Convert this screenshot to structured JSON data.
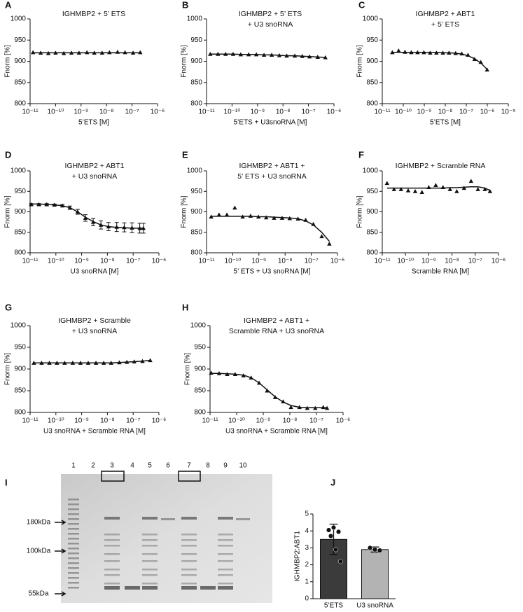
{
  "chart_data": [
    {
      "type": "line",
      "panel": "A",
      "title": [
        "IGHMBP2 + 5’ ETS"
      ],
      "xlabel": "5’ETS [M]",
      "ylabel": "Fnorm [%]",
      "xscale": "log",
      "xlim": [
        1e-11,
        1e-06
      ],
      "xticks": [
        {
          "value": 1e-11,
          "label": "10⁻¹¹"
        },
        {
          "value": 1e-10,
          "label": "10⁻¹⁰"
        },
        {
          "value": 1e-09,
          "label": "10⁻⁹"
        },
        {
          "value": 1e-08,
          "label": "10⁻⁸"
        },
        {
          "value": 1e-07,
          "label": "10⁻⁷"
        },
        {
          "value": 1e-06,
          "label": "10⁻⁶"
        }
      ],
      "ylim": [
        800,
        1000
      ],
      "yticks": [
        800,
        850,
        900,
        950,
        1000
      ],
      "color": "#111111",
      "x": [
        1.3e-11,
        2.6e-11,
        5.2e-11,
        1e-10,
        2.1e-10,
        4.2e-10,
        8.3e-10,
        1.7e-09,
        3.3e-09,
        6.7e-09,
        1.3e-08,
        2.7e-08,
        5.3e-08,
        1.1e-07,
        2.1e-07
      ],
      "values": [
        921,
        920,
        919,
        920,
        919,
        920,
        920,
        921,
        920,
        920,
        921,
        922,
        921,
        920,
        921
      ],
      "fit": [
        920,
        920,
        920,
        920,
        920,
        920,
        920,
        920,
        920,
        920,
        920,
        920,
        920,
        920,
        920
      ]
    },
    {
      "type": "line",
      "panel": "B",
      "title": [
        "IGHMBP2 + 5’ ETS",
        "+ U3 snoRNA"
      ],
      "xlabel": "5’ETS + U3snoRNA [M]",
      "ylabel": "Fnorm [%]",
      "xscale": "log",
      "xlim": [
        1e-11,
        1e-06
      ],
      "xticks": [
        {
          "value": 1e-11,
          "label": "10⁻¹¹"
        },
        {
          "value": 1e-10,
          "label": "10⁻¹⁰"
        },
        {
          "value": 1e-09,
          "label": "10⁻⁹"
        },
        {
          "value": 1e-08,
          "label": "10⁻⁸"
        },
        {
          "value": 1e-07,
          "label": "10⁻⁷"
        },
        {
          "value": 1e-06,
          "label": "10⁻⁶"
        }
      ],
      "ylim": [
        800,
        1000
      ],
      "yticks": [
        800,
        850,
        900,
        950,
        1000
      ],
      "color": "#111111",
      "x": [
        1.4e-11,
        2.8e-11,
        5.6e-11,
        1.1e-10,
        2.2e-10,
        4.5e-10,
        9e-10,
        1.8e-09,
        3.6e-09,
        7.2e-09,
        1.4e-08,
        2.9e-08,
        5.7e-08,
        1.1e-07,
        2.3e-07,
        4.6e-07
      ],
      "values": [
        917,
        917,
        917,
        917,
        916,
        916,
        916,
        915,
        915,
        914,
        913,
        913,
        912,
        911,
        910,
        909
      ],
      "fit": [
        917,
        917,
        917,
        917,
        916,
        916,
        916,
        915,
        915,
        914,
        913,
        913,
        912,
        911,
        910,
        909
      ]
    },
    {
      "type": "line",
      "panel": "C",
      "title": [
        "IGHMBP2 + ABT1",
        "+ 5’ ETS"
      ],
      "xlabel": "5’ETS [M]",
      "ylabel": "Fnorm [%]",
      "xscale": "log",
      "xlim": [
        1e-11,
        1e-05
      ],
      "xticks": [
        {
          "value": 1e-11,
          "label": "10⁻¹¹"
        },
        {
          "value": 1e-10,
          "label": "10⁻¹⁰"
        },
        {
          "value": 1e-09,
          "label": "10⁻⁹"
        },
        {
          "value": 1e-08,
          "label": "10⁻⁸"
        },
        {
          "value": 1e-07,
          "label": "10⁻⁷"
        },
        {
          "value": 1e-06,
          "label": "10⁻⁶"
        },
        {
          "value": 1e-05,
          "label": "10⁻⁵"
        }
      ],
      "ylim": [
        800,
        1000
      ],
      "yticks": [
        800,
        850,
        900,
        950,
        1000
      ],
      "color": "#111111",
      "x": [
        3e-11,
        6e-11,
        1.2e-10,
        2.4e-10,
        4.8e-10,
        9.6e-10,
        1.9e-09,
        3.8e-09,
        7.7e-09,
        1.5e-08,
        3.1e-08,
        6.1e-08,
        1.2e-07,
        2.5e-07,
        4.9e-07,
        9.8e-07
      ],
      "values": [
        921,
        925,
        922,
        921,
        921,
        921,
        920,
        920,
        920,
        920,
        919,
        918,
        915,
        905,
        898,
        880
      ],
      "fit": [
        921,
        921,
        921,
        921,
        921,
        921,
        921,
        921,
        920,
        920,
        919,
        917,
        913,
        906,
        896,
        881
      ]
    },
    {
      "type": "line",
      "panel": "D",
      "title": [
        "IGHMBP2 + ABT1",
        "+ U3 snoRNA"
      ],
      "xlabel": "U3 snoRNA [M]",
      "ylabel": "Fnorm [%]",
      "xscale": "log",
      "xlim": [
        1e-11,
        1e-06
      ],
      "xticks": [
        {
          "value": 1e-11,
          "label": "10⁻¹¹"
        },
        {
          "value": 1e-10,
          "label": "10⁻¹⁰"
        },
        {
          "value": 1e-09,
          "label": "10⁻⁹"
        },
        {
          "value": 1e-08,
          "label": "10⁻⁸"
        },
        {
          "value": 1e-07,
          "label": "10⁻⁷"
        },
        {
          "value": 1e-06,
          "label": "10⁻⁶"
        }
      ],
      "ylim": [
        800,
        1000
      ],
      "yticks": [
        800,
        850,
        900,
        950,
        1000
      ],
      "color": "#111111",
      "x": [
        1.1e-11,
        2.2e-11,
        4.4e-11,
        8.8e-11,
        1.8e-10,
        3.5e-10,
        7e-10,
        1.4e-09,
        2.8e-09,
        5.6e-09,
        1.1e-08,
        2.3e-08,
        4.5e-08,
        9e-08,
        1.8e-07,
        2.5e-07
      ],
      "values": [
        918,
        918,
        918,
        917,
        915,
        910,
        900,
        885,
        875,
        868,
        864,
        863,
        862,
        861,
        860,
        860
      ],
      "errors": [
        2,
        2,
        2,
        2,
        3,
        4,
        6,
        8,
        9,
        10,
        10,
        11,
        11,
        12,
        12,
        12
      ],
      "fit": [
        919,
        919,
        918,
        917,
        915,
        910,
        900,
        887,
        876,
        868,
        864,
        862,
        861,
        860,
        860,
        860
      ]
    },
    {
      "type": "line",
      "panel": "E",
      "title": [
        "IGHMBP2 + ABT1 +",
        "5’ ETS + U3 snoRNA"
      ],
      "xlabel": "5’ ETS + U3 snoRNA [M]",
      "ylabel": "Fnorm [%]",
      "xscale": "log",
      "xlim": [
        1e-11,
        1e-06
      ],
      "xticks": [
        {
          "value": 1e-11,
          "label": "10⁻¹¹"
        },
        {
          "value": 1e-10,
          "label": "10⁻¹⁰"
        },
        {
          "value": 1e-09,
          "label": "10⁻⁹"
        },
        {
          "value": 1e-08,
          "label": "10⁻⁸"
        },
        {
          "value": 1e-07,
          "label": "10⁻⁷"
        },
        {
          "value": 1e-06,
          "label": "10⁻⁶"
        }
      ],
      "ylim": [
        800,
        1000
      ],
      "yticks": [
        800,
        850,
        900,
        950,
        1000
      ],
      "color": "#111111",
      "x": [
        1.5e-11,
        3e-11,
        6e-11,
        1.2e-10,
        2.4e-10,
        4.8e-10,
        9.6e-10,
        1.9e-09,
        3.8e-09,
        7.7e-09,
        1.5e-08,
        3.1e-08,
        6.1e-08,
        1.2e-07,
        2.5e-07,
        4.9e-07
      ],
      "values": [
        888,
        893,
        893,
        910,
        888,
        890,
        888,
        886,
        885,
        885,
        884,
        883,
        880,
        870,
        840,
        822
      ],
      "fit": [
        889,
        889,
        889,
        889,
        889,
        889,
        888,
        888,
        887,
        886,
        885,
        883,
        878,
        868,
        850,
        828
      ]
    },
    {
      "type": "line",
      "panel": "F",
      "title": [
        "IGHMBP2 + Scramble RNA"
      ],
      "xlabel": "Scramble RNA [M]",
      "ylabel": "Fnorm [%]",
      "xscale": "log",
      "xlim": [
        1e-11,
        1e-06
      ],
      "xticks": [
        {
          "value": 1e-11,
          "label": "10⁻¹¹"
        },
        {
          "value": 1e-10,
          "label": "10⁻¹⁰"
        },
        {
          "value": 1e-09,
          "label": "10⁻⁹"
        },
        {
          "value": 1e-08,
          "label": "10⁻⁸"
        },
        {
          "value": 1e-07,
          "label": "10⁻⁷"
        },
        {
          "value": 1e-06,
          "label": "10⁻⁶"
        }
      ],
      "ylim": [
        800,
        1000
      ],
      "yticks": [
        800,
        850,
        900,
        950,
        1000
      ],
      "color": "#111111",
      "x": [
        1.6e-11,
        3.2e-11,
        6.4e-11,
        1.3e-10,
        2.6e-10,
        5.1e-10,
        1e-09,
        2e-09,
        4.1e-09,
        8.2e-09,
        1.6e-08,
        3.3e-08,
        6.6e-08,
        1.3e-07,
        2.6e-07,
        4.3e-07
      ],
      "values": [
        970,
        955,
        955,
        952,
        950,
        948,
        960,
        965,
        960,
        955,
        950,
        958,
        975,
        955,
        955,
        950
      ],
      "fit": [
        958,
        958,
        958,
        958,
        958,
        958,
        958,
        958,
        958,
        959,
        959,
        960,
        961,
        961,
        958,
        952
      ]
    },
    {
      "type": "line",
      "panel": "G",
      "title": [
        "IGHMBP2 + Scramble",
        "+ U3 snoRNA"
      ],
      "xlabel": "U3 snoRNA + Scramble RNA [M]",
      "ylabel": "Fnorm [%]",
      "xscale": "log",
      "xlim": [
        1e-11,
        1e-06
      ],
      "xticks": [
        {
          "value": 1e-11,
          "label": "10⁻¹¹"
        },
        {
          "value": 1e-10,
          "label": "10⁻¹⁰"
        },
        {
          "value": 1e-09,
          "label": "10⁻⁹"
        },
        {
          "value": 1e-08,
          "label": "10⁻⁸"
        },
        {
          "value": 1e-07,
          "label": "10⁻⁷"
        },
        {
          "value": 1e-06,
          "label": "10⁻⁶"
        }
      ],
      "ylim": [
        800,
        1000
      ],
      "yticks": [
        800,
        850,
        900,
        950,
        1000
      ],
      "color": "#111111",
      "x": [
        1.4e-11,
        2.8e-11,
        5.6e-11,
        1.1e-10,
        2.2e-10,
        4.5e-10,
        9e-10,
        1.8e-09,
        3.6e-09,
        7.2e-09,
        1.4e-08,
        2.9e-08,
        5.7e-08,
        1.1e-07,
        2.3e-07,
        4.6e-07
      ],
      "values": [
        914,
        914,
        914,
        914,
        914,
        914,
        914,
        914,
        914,
        914,
        914,
        915,
        916,
        917,
        918,
        920
      ],
      "fit": [
        914,
        914,
        914,
        914,
        914,
        914,
        914,
        914,
        914,
        914,
        914,
        915,
        916,
        917,
        918,
        920
      ]
    },
    {
      "type": "line",
      "panel": "H",
      "title": [
        "IGHMBP2 + ABT1 +",
        "Scramble RNA + U3 snoRNA"
      ],
      "xlabel": "U3 snoRNA + Scramble RNA [M]",
      "ylabel": "Fnorm [%]",
      "xscale": "log",
      "xlim": [
        1e-11,
        1e-06
      ],
      "xticks": [
        {
          "value": 1e-11,
          "label": "10⁻¹¹"
        },
        {
          "value": 1e-10,
          "label": "10⁻¹⁰"
        },
        {
          "value": 1e-09,
          "label": "10⁻⁹"
        },
        {
          "value": 1e-08,
          "label": "10⁻⁸"
        },
        {
          "value": 1e-07,
          "label": "10⁻⁷"
        },
        {
          "value": 1e-06,
          "label": "10⁻⁶"
        }
      ],
      "ylim": [
        800,
        1000
      ],
      "yticks": [
        800,
        850,
        900,
        950,
        1000
      ],
      "color": "#111111",
      "x": [
        1.1e-11,
        2.2e-11,
        4.4e-11,
        8.8e-11,
        1.8e-10,
        3.5e-10,
        7e-10,
        1.4e-09,
        2.8e-09,
        5.6e-09,
        1.1e-08,
        2.3e-08,
        4.5e-08,
        9e-08,
        1.8e-07,
        2.5e-07
      ],
      "values": [
        891,
        890,
        888,
        888,
        885,
        880,
        868,
        850,
        835,
        825,
        812,
        812,
        810,
        810,
        812,
        810
      ],
      "fit": [
        890,
        890,
        889,
        888,
        886,
        880,
        868,
        852,
        836,
        824,
        816,
        812,
        811,
        811,
        811,
        811
      ]
    },
    {
      "type": "bar",
      "panel": "J",
      "ylabel": "IGHMBP2:ABT1",
      "categories": [
        "5’ETS",
        "U3 snoRNA"
      ],
      "values": [
        3.5,
        2.9
      ],
      "errors": [
        0.9,
        0.15
      ],
      "colors": [
        "#3b3b3b",
        "#b3b3b3"
      ],
      "points": [
        [
          4.05,
          4.2,
          3.95,
          3.7,
          2.9,
          2.2
        ],
        [
          3.0,
          2.9,
          2.85
        ]
      ],
      "ylim": [
        0,
        5
      ],
      "yticks": [
        0,
        1,
        2,
        3,
        4,
        5
      ]
    }
  ],
  "gel": {
    "panel": "I",
    "lanes": [
      "1",
      "2",
      "3",
      "4",
      "5",
      "6",
      "7",
      "8",
      "9",
      "10"
    ],
    "markers": [
      "180kDa",
      "100kDa",
      "55kDa"
    ]
  }
}
